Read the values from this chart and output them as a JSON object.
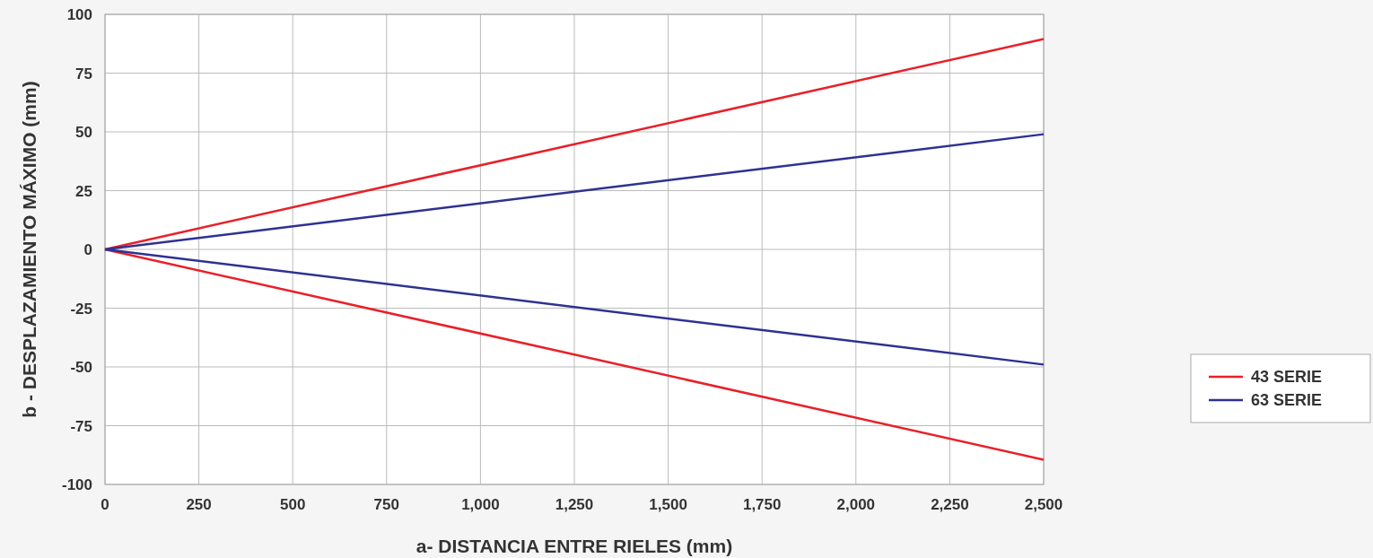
{
  "chart_data": {
    "type": "line",
    "xlabel": "a- DISTANCIA ENTRE RIELES (mm)",
    "ylabel": "b - DESPLAZAMIENTO MÁXIMO (mm)",
    "x": [
      0,
      2500
    ],
    "series": [
      {
        "name": "43 SERIE",
        "color": "#e8202a",
        "values": [
          0,
          89.5
        ]
      },
      {
        "color": "#e8202a",
        "values": [
          0,
          -89.5
        ]
      },
      {
        "name": "63 SERIE",
        "color": "#2e3192",
        "values": [
          0,
          49
        ]
      },
      {
        "color": "#2e3192",
        "values": [
          0,
          -49
        ]
      }
    ],
    "xlim": [
      0,
      2500
    ],
    "xticks": [
      0,
      250,
      500,
      750,
      {
        "value": 1000,
        "label": "1,000"
      },
      {
        "value": 1250,
        "label": "1,250"
      },
      {
        "value": 1500,
        "label": "1,500"
      },
      {
        "value": 1750,
        "label": "1,750"
      },
      {
        "value": 2000,
        "label": "2,000"
      },
      {
        "value": 2250,
        "label": "2,250"
      },
      {
        "value": 2500,
        "label": "2,500"
      }
    ],
    "ylim": [
      -100,
      100
    ],
    "yticks": [
      -100,
      -75,
      -50,
      -25,
      0,
      25,
      50,
      75,
      100
    ],
    "grid": true,
    "legend": "right",
    "marker": "none",
    "line_style": "solid"
  }
}
